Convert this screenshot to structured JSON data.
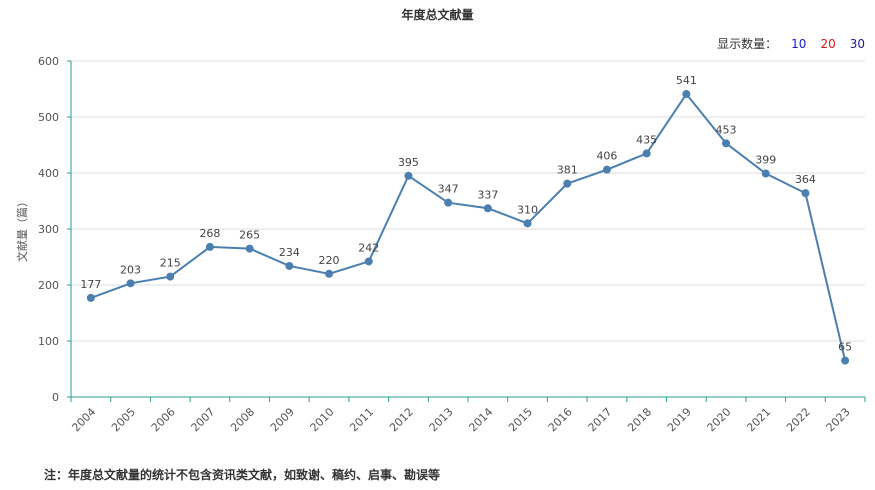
{
  "title": "年度总文献量",
  "display": {
    "label": "显示数量：",
    "options": [
      {
        "text": "10",
        "color": "#1a1ad6"
      },
      {
        "text": "20",
        "color": "#d61a1a"
      },
      {
        "text": "30",
        "color": "#1a1a8c"
      }
    ]
  },
  "footnote": "注：年度总文献量的统计不包含资讯类文献，如致谢、稿约、启事、勘误等",
  "colors": {
    "line": "#4a7fb0",
    "axis": "#2a9d8f",
    "grid": "#dddddd"
  },
  "chart_data": {
    "type": "line",
    "title": "年度总文献量",
    "xlabel": "",
    "ylabel": "文献量（篇）",
    "ylim": [
      0,
      600
    ],
    "yticks": [
      0,
      100,
      200,
      300,
      400,
      500,
      600
    ],
    "grid": true,
    "categories": [
      "2004",
      "2005",
      "2006",
      "2007",
      "2008",
      "2009",
      "2010",
      "2011",
      "2012",
      "2013",
      "2014",
      "2015",
      "2016",
      "2017",
      "2018",
      "2019",
      "2020",
      "2021",
      "2022",
      "2023"
    ],
    "series": [
      {
        "values": [
          177,
          203,
          215,
          268,
          265,
          234,
          220,
          242,
          395,
          347,
          337,
          310,
          381,
          406,
          435,
          541,
          453,
          399,
          364,
          65
        ]
      }
    ]
  }
}
